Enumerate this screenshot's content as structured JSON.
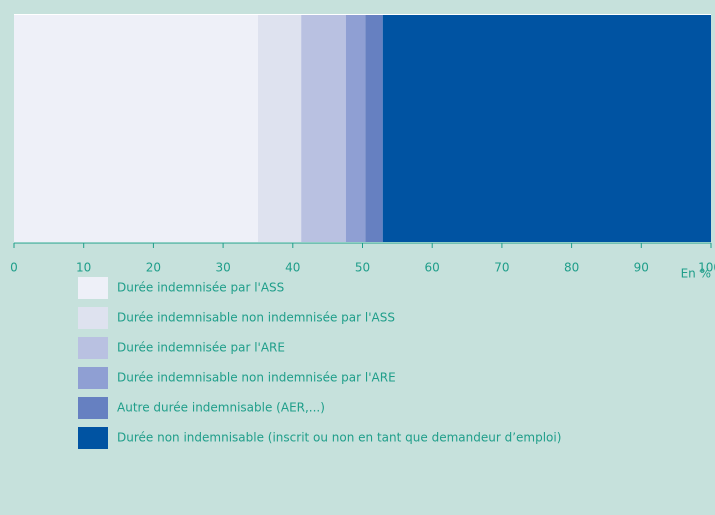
{
  "chart_data": {
    "type": "bar",
    "orientation": "horizontal",
    "stacked": true,
    "categories": [
      null
    ],
    "series": [
      {
        "name": "Durée indemnisée par l'ASS",
        "color": "#eef0f8",
        "values": [
          35.0
        ]
      },
      {
        "name": "Durée indemnisable non indemnisée par l'ASS",
        "color": "#dee2ef",
        "values": [
          6.2
        ]
      },
      {
        "name": "Durée indemnisée par l'ARE",
        "color": "#b9c1e1",
        "values": [
          6.4
        ]
      },
      {
        "name": "Durée indemnisable non indemnisée par l'ARE",
        "color": "#8f9fd3",
        "values": [
          2.8
        ]
      },
      {
        "name": "Autre durée indemnisable (AER,...)",
        "color": "#6680c1",
        "values": [
          2.5
        ]
      },
      {
        "name": "Durée non indemnisable (inscrit ou non en tant que demandeur d’emploi)",
        "color": "#0053a2",
        "values": [
          47.1
        ]
      }
    ],
    "xlabel": "En %",
    "xlim": [
      0,
      100
    ],
    "xticks": [
      0,
      10,
      20,
      30,
      40,
      50,
      60,
      70,
      80,
      90,
      100
    ],
    "legend": "bottom"
  }
}
